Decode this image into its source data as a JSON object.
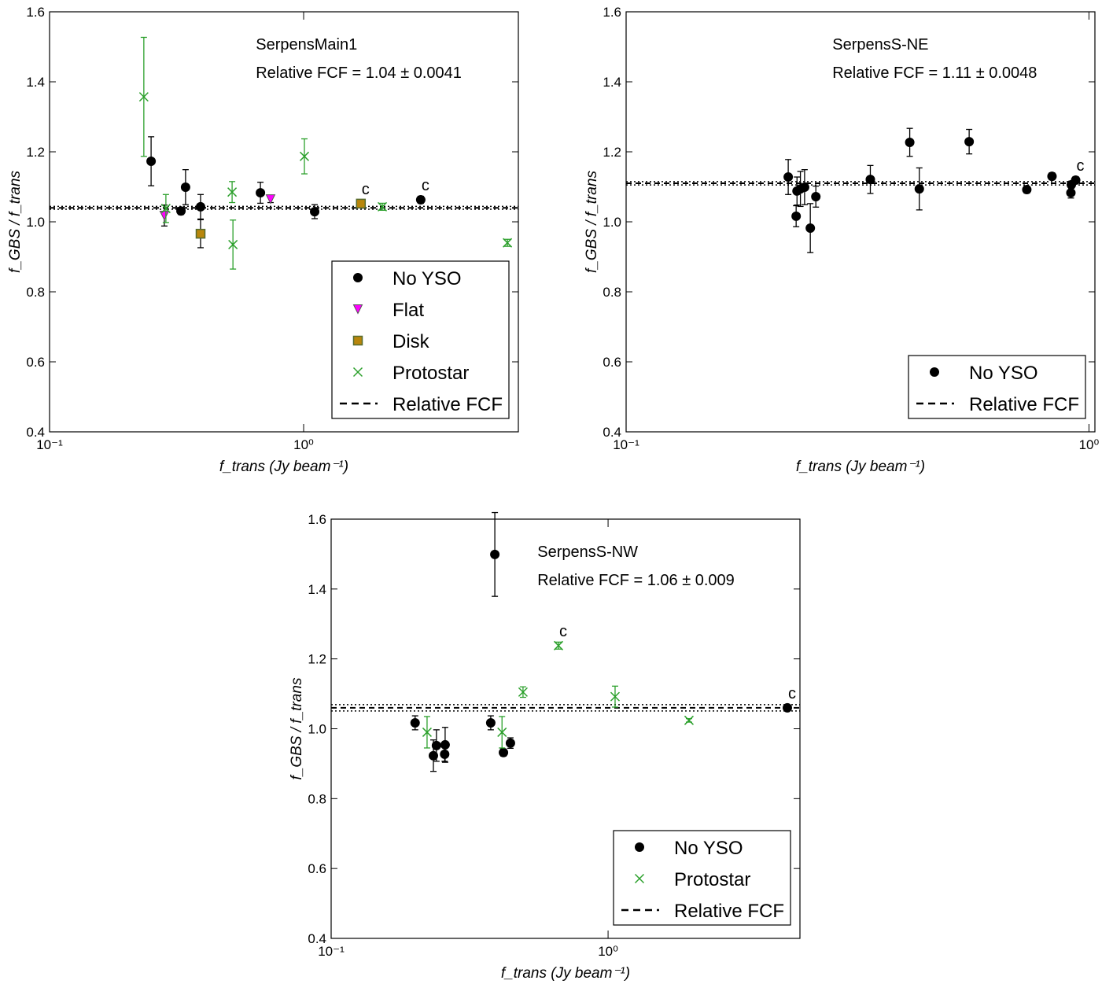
{
  "chart_data": [
    {
      "type": "scatter",
      "xscale": "log",
      "xlim": [
        0.1,
        7
      ],
      "xticks": [
        {
          "value": 0.1,
          "label": "10⁻¹"
        },
        {
          "value": 1,
          "label": "10⁰"
        }
      ],
      "ylim": [
        0.4,
        1.6
      ],
      "yticks": [
        0.4,
        0.6,
        0.8,
        {
          "value": 1,
          "label": "1.0"
        },
        1.2,
        1.4,
        1.6
      ],
      "xlabel": "f_trans (Jy beam⁻¹)",
      "ylabel": "f_GBS / f_trans",
      "annotations": [
        "SerpensMain1",
        "Relative FCF = 1.04 ± 0.0041"
      ],
      "legend_loc": "lower right",
      "fcf": {
        "name": "Relative FCF",
        "value": 1.04,
        "err": 0.0041
      },
      "series": [
        {
          "name": "No YSO",
          "marker": "circle",
          "color": "#000000",
          "x": [
            0.251,
            0.329,
            0.343,
            0.393,
            0.676,
            1.105,
            2.89
          ],
          "values": [
            1.173,
            1.031,
            1.099,
            1.043,
            1.083,
            1.029,
            1.063
          ],
          "yerr": [
            0.07,
            0.01,
            0.05,
            0.035,
            0.03,
            0.02,
            0.01
          ],
          "point_labels": [
            null,
            null,
            null,
            null,
            null,
            null,
            "c"
          ]
        },
        {
          "name": "Flat",
          "marker": "triangle_down",
          "color": "#ff00ff",
          "x": [
            0.283,
            0.741
          ],
          "values": [
            1.018,
            1.065
          ],
          "yerr": [
            0.03,
            0.01
          ]
        },
        {
          "name": "Disk",
          "marker": "square",
          "color": "#b8860b",
          "x": [
            0.393,
            1.68
          ],
          "values": [
            0.966,
            1.052
          ],
          "yerr": [
            0.04,
            0.01
          ],
          "point_labels": [
            null,
            "c"
          ]
        },
        {
          "name": "Protostar",
          "marker": "x",
          "color": "#2ca02c",
          "x": [
            0.235,
            0.287,
            0.523,
            0.527,
            1.007,
            2.04,
            6.34
          ],
          "values": [
            1.357,
            1.038,
            1.085,
            0.935,
            1.187,
            1.043,
            0.94
          ],
          "yerr": [
            0.17,
            0.04,
            0.03,
            0.07,
            0.05,
            0.01,
            0.01
          ]
        }
      ]
    },
    {
      "type": "scatter",
      "xscale": "log",
      "xlim": [
        0.1,
        1.03
      ],
      "xticks": [
        {
          "value": 0.1,
          "label": "10⁻¹"
        },
        {
          "value": 1,
          "label": "10⁰"
        }
      ],
      "ylim": [
        0.4,
        1.6
      ],
      "yticks": [
        0.4,
        0.6,
        0.8,
        {
          "value": 1,
          "label": "1.0"
        },
        1.2,
        1.4,
        1.6
      ],
      "xlabel": "f_trans (Jy beam⁻¹)",
      "ylabel": "f_GBS / f_trans",
      "annotations": [
        "SerpensS-NE",
        "Relative FCF = 1.11 ± 0.0048"
      ],
      "legend_loc": "lower right",
      "fcf": {
        "name": "Relative FCF",
        "value": 1.11,
        "err": 0.0048
      },
      "series": [
        {
          "name": "No YSO",
          "marker": "circle",
          "color": "#000000",
          "x": [
            0.224,
            0.233,
            0.234,
            0.238,
            0.243,
            0.25,
            0.257,
            0.337,
            0.41,
            0.43,
            0.551,
            0.734,
            0.832,
            0.914,
            0.916,
            0.936
          ],
          "values": [
            1.128,
            1.016,
            1.088,
            1.094,
            1.099,
            0.982,
            1.072,
            1.121,
            1.227,
            1.094,
            1.229,
            1.092,
            1.13,
            1.083,
            1.106,
            1.119
          ],
          "yerr": [
            0.05,
            0.03,
            0.04,
            0.05,
            0.05,
            0.07,
            0.03,
            0.04,
            0.04,
            0.06,
            0.035,
            0.01,
            0.01,
            0.015,
            0.01,
            0.01
          ],
          "point_labels": [
            null,
            null,
            null,
            null,
            null,
            null,
            null,
            null,
            null,
            null,
            null,
            null,
            null,
            null,
            null,
            "c"
          ]
        }
      ]
    },
    {
      "type": "scatter",
      "xscale": "log",
      "xlim": [
        0.1,
        4.93
      ],
      "xticks": [
        {
          "value": 0.1,
          "label": "10⁻¹"
        },
        {
          "value": 1,
          "label": "10⁰"
        }
      ],
      "ylim": [
        0.4,
        1.6
      ],
      "yticks": [
        0.4,
        0.6,
        0.8,
        {
          "value": 1,
          "label": "1.0"
        },
        1.2,
        1.4,
        1.6
      ],
      "xlabel": "f_trans (Jy beam⁻¹)",
      "ylabel": "f_GBS / f_trans",
      "annotations": [
        "SerpensS-NW",
        "Relative FCF = 1.06 ± 0.009"
      ],
      "legend_loc": "lower right",
      "fcf": {
        "name": "Relative FCF",
        "value": 1.06,
        "err": 0.009
      },
      "series": [
        {
          "name": "No YSO",
          "marker": "circle",
          "color": "#000000",
          "x": [
            0.201,
            0.234,
            0.24,
            0.257,
            0.258,
            0.377,
            0.39,
            0.419,
            0.444,
            4.44
          ],
          "values": [
            1.017,
            0.923,
            0.952,
            0.927,
            0.954,
            1.017,
            1.499,
            0.932,
            0.959,
            1.06
          ],
          "yerr": [
            0.02,
            0.045,
            0.045,
            0.02,
            0.05,
            0.02,
            0.12,
            0.01,
            0.015,
            0.005
          ],
          "point_labels": [
            null,
            null,
            null,
            null,
            null,
            null,
            null,
            null,
            null,
            "c"
          ]
        },
        {
          "name": "Protostar",
          "marker": "x",
          "color": "#2ca02c",
          "x": [
            0.222,
            0.414,
            0.493,
            0.662,
            1.06,
            1.96
          ],
          "values": [
            0.99,
            0.99,
            1.105,
            1.238,
            1.092,
            1.024
          ],
          "yerr": [
            0.045,
            0.045,
            0.015,
            0.01,
            0.03,
            0.005
          ],
          "point_labels": [
            null,
            null,
            null,
            "c",
            null,
            null
          ]
        }
      ]
    }
  ]
}
